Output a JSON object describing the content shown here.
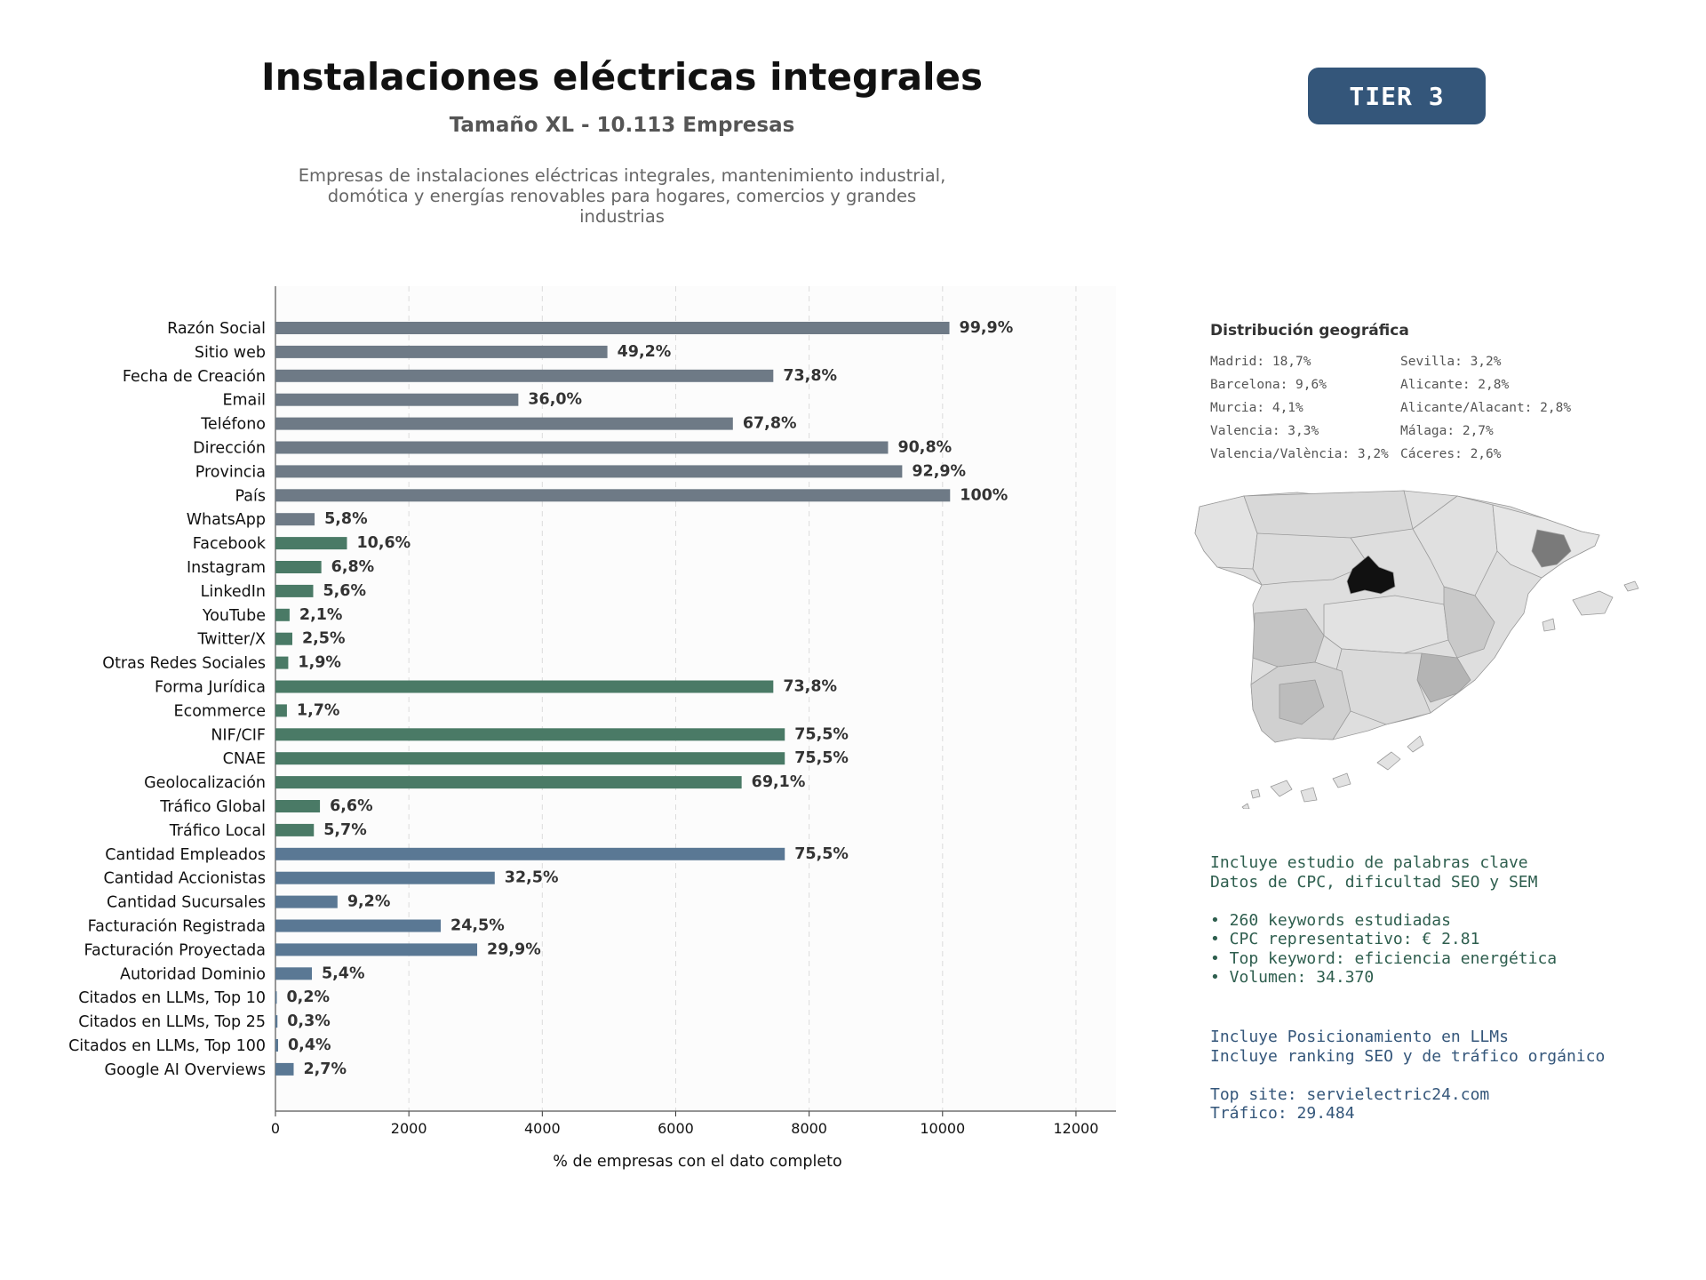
{
  "header": {
    "title": "Instalaciones eléctricas integrales",
    "subtitle": "Tamaño XL - 10.113 Empresas",
    "description": "Empresas de instalaciones eléctricas integrales, mantenimiento industrial, domótica y energías renovables para hogares, comercios y grandes industrias",
    "tier_badge": "TIER 3"
  },
  "chart_data": {
    "type": "bar",
    "orientation": "horizontal",
    "xlabel": "% de empresas con el dato completo",
    "xlim": [
      0,
      12600
    ],
    "xticks": [
      0,
      2000,
      4000,
      6000,
      8000,
      10000,
      12000
    ],
    "grid": "vertical dashed",
    "colors": {
      "basic": "#6e7a86",
      "social": "#4a7a66",
      "business": "#5a7894"
    },
    "bars": [
      {
        "label": "Razón Social",
        "value": 10103,
        "pct": "99,9%",
        "group": "basic"
      },
      {
        "label": "Sitio web",
        "value": 4976,
        "pct": "49,2%",
        "group": "basic"
      },
      {
        "label": "Fecha de Creación",
        "value": 7463,
        "pct": "73,8%",
        "group": "basic"
      },
      {
        "label": "Email",
        "value": 3641,
        "pct": "36,0%",
        "group": "basic"
      },
      {
        "label": "Teléfono",
        "value": 6857,
        "pct": "67,8%",
        "group": "basic"
      },
      {
        "label": "Dirección",
        "value": 9183,
        "pct": "90,8%",
        "group": "basic"
      },
      {
        "label": "Provincia",
        "value": 9395,
        "pct": "92,9%",
        "group": "basic"
      },
      {
        "label": "País",
        "value": 10113,
        "pct": "100%",
        "group": "basic"
      },
      {
        "label": "WhatsApp",
        "value": 587,
        "pct": "5,8%",
        "group": "basic"
      },
      {
        "label": "Facebook",
        "value": 1072,
        "pct": "10,6%",
        "group": "social"
      },
      {
        "label": "Instagram",
        "value": 688,
        "pct": "6,8%",
        "group": "social"
      },
      {
        "label": "LinkedIn",
        "value": 566,
        "pct": "5,6%",
        "group": "social"
      },
      {
        "label": "YouTube",
        "value": 212,
        "pct": "2,1%",
        "group": "social"
      },
      {
        "label": "Twitter/X",
        "value": 253,
        "pct": "2,5%",
        "group": "social"
      },
      {
        "label": "Otras Redes Sociales",
        "value": 192,
        "pct": "1,9%",
        "group": "social"
      },
      {
        "label": "Forma Jurídica",
        "value": 7463,
        "pct": "73,8%",
        "group": "social"
      },
      {
        "label": "Ecommerce",
        "value": 172,
        "pct": "1,7%",
        "group": "social"
      },
      {
        "label": "NIF/CIF",
        "value": 7635,
        "pct": "75,5%",
        "group": "social"
      },
      {
        "label": "CNAE",
        "value": 7635,
        "pct": "75,5%",
        "group": "social"
      },
      {
        "label": "Geolocalización",
        "value": 6988,
        "pct": "69,1%",
        "group": "social"
      },
      {
        "label": "Tráfico Global",
        "value": 667,
        "pct": "6,6%",
        "group": "social"
      },
      {
        "label": "Tráfico Local",
        "value": 576,
        "pct": "5,7%",
        "group": "social"
      },
      {
        "label": "Cantidad Empleados",
        "value": 7635,
        "pct": "75,5%",
        "group": "business"
      },
      {
        "label": "Cantidad Accionistas",
        "value": 3287,
        "pct": "32,5%",
        "group": "business"
      },
      {
        "label": "Cantidad Sucursales",
        "value": 930,
        "pct": "9,2%",
        "group": "business"
      },
      {
        "label": "Facturación Registrada",
        "value": 2478,
        "pct": "24,5%",
        "group": "business"
      },
      {
        "label": "Facturación Proyectada",
        "value": 3024,
        "pct": "29,9%",
        "group": "business"
      },
      {
        "label": "Autoridad Dominio",
        "value": 546,
        "pct": "5,4%",
        "group": "business"
      },
      {
        "label": "Citados en LLMs, Top 10",
        "value": 20,
        "pct": "0,2%",
        "group": "business"
      },
      {
        "label": "Citados en LLMs, Top 25",
        "value": 30,
        "pct": "0,3%",
        "group": "business"
      },
      {
        "label": "Citados en LLMs, Top 100",
        "value": 40,
        "pct": "0,4%",
        "group": "business"
      },
      {
        "label": "Google AI Overviews",
        "value": 273,
        "pct": "2,7%",
        "group": "business"
      }
    ]
  },
  "geo": {
    "title": "Distribución geográfica",
    "items": [
      "Madrid: 18,7%",
      "Sevilla: 3,2%",
      "Barcelona: 9,6%",
      "Alicante: 2,8%",
      "Murcia: 4,1%",
      "Alicante/Alacant: 2,8%",
      "Valencia: 3,3%",
      "Málaga: 2,7%",
      "Valencia/València: 3,2%",
      "Cáceres: 2,6%"
    ]
  },
  "seo": {
    "line1": "Incluye estudio de palabras clave",
    "line2": "Datos de CPC, dificultad SEO y SEM",
    "bullet1": "• 260 keywords estudiadas",
    "bullet2": "• CPC representativo: € 2.81",
    "bullet3": "• Top keyword: eficiencia energética",
    "bullet4": "• Volumen: 34.370"
  },
  "llm": {
    "line1": "Incluye Posicionamiento en LLMs",
    "line2": "Incluye ranking SEO y de tráfico orgánico",
    "line3": "Top site: servielectric24.com",
    "line4": "Tráfico: 29.484"
  }
}
